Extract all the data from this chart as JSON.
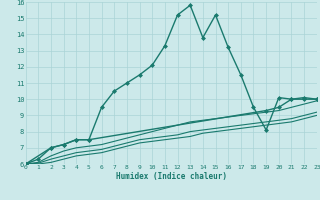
{
  "xlabel": "Humidex (Indice chaleur)",
  "bg_color": "#cce9ea",
  "grid_color": "#aad4d6",
  "line_color": "#1a7a6e",
  "xmin": 0,
  "xmax": 23,
  "ymin": 6,
  "ymax": 16,
  "xticks": [
    0,
    1,
    2,
    3,
    4,
    5,
    6,
    7,
    8,
    9,
    10,
    11,
    12,
    13,
    14,
    15,
    16,
    17,
    18,
    19,
    20,
    21,
    22,
    23
  ],
  "yticks": [
    6,
    7,
    8,
    9,
    10,
    11,
    12,
    13,
    14,
    15,
    16
  ],
  "lines": [
    {
      "x": [
        0,
        1,
        2,
        3,
        4,
        5,
        6,
        7,
        8,
        9,
        10,
        11,
        12,
        13,
        14,
        15,
        16,
        17,
        18,
        19,
        20,
        21,
        22,
        23
      ],
      "y": [
        6.0,
        6.3,
        7.0,
        7.2,
        7.5,
        7.5,
        9.5,
        10.5,
        11.0,
        11.5,
        12.1,
        13.3,
        15.2,
        15.8,
        13.8,
        15.2,
        13.2,
        11.5,
        9.5,
        8.1,
        10.1,
        10.0,
        10.0,
        10.0
      ],
      "marker": "D",
      "ms": 2.0,
      "lw": 1.0
    },
    {
      "x": [
        0,
        2,
        3,
        4,
        5,
        19,
        20,
        21,
        22,
        23
      ],
      "y": [
        6.0,
        7.0,
        7.2,
        7.5,
        7.5,
        9.3,
        9.5,
        10.0,
        10.1,
        10.0
      ],
      "marker": "D",
      "ms": 2.0,
      "lw": 1.0
    },
    {
      "x": [
        0,
        1,
        2,
        3,
        4,
        5,
        6,
        7,
        8,
        9,
        10,
        11,
        12,
        13,
        14,
        15,
        16,
        17,
        18,
        19,
        20,
        21,
        22,
        23
      ],
      "y": [
        6.0,
        6.1,
        6.5,
        6.8,
        7.0,
        7.1,
        7.2,
        7.4,
        7.6,
        7.8,
        8.0,
        8.2,
        8.4,
        8.6,
        8.7,
        8.8,
        8.9,
        9.0,
        9.1,
        9.2,
        9.3,
        9.5,
        9.7,
        9.9
      ],
      "marker": null,
      "ms": 0,
      "lw": 0.8
    },
    {
      "x": [
        0,
        1,
        2,
        3,
        4,
        5,
        6,
        7,
        8,
        9,
        10,
        11,
        12,
        13,
        14,
        15,
        16,
        17,
        18,
        19,
        20,
        21,
        22,
        23
      ],
      "y": [
        6.0,
        6.05,
        6.3,
        6.5,
        6.7,
        6.8,
        6.9,
        7.1,
        7.3,
        7.5,
        7.6,
        7.7,
        7.8,
        8.0,
        8.1,
        8.2,
        8.3,
        8.4,
        8.5,
        8.6,
        8.7,
        8.8,
        9.0,
        9.2
      ],
      "marker": null,
      "ms": 0,
      "lw": 0.8
    },
    {
      "x": [
        0,
        1,
        2,
        3,
        4,
        5,
        6,
        7,
        8,
        9,
        10,
        11,
        12,
        13,
        14,
        15,
        16,
        17,
        18,
        19,
        20,
        21,
        22,
        23
      ],
      "y": [
        6.0,
        6.0,
        6.1,
        6.3,
        6.5,
        6.6,
        6.7,
        6.9,
        7.1,
        7.3,
        7.4,
        7.5,
        7.6,
        7.7,
        7.9,
        8.0,
        8.1,
        8.2,
        8.3,
        8.4,
        8.5,
        8.6,
        8.8,
        9.0
      ],
      "marker": null,
      "ms": 0,
      "lw": 0.8
    }
  ]
}
